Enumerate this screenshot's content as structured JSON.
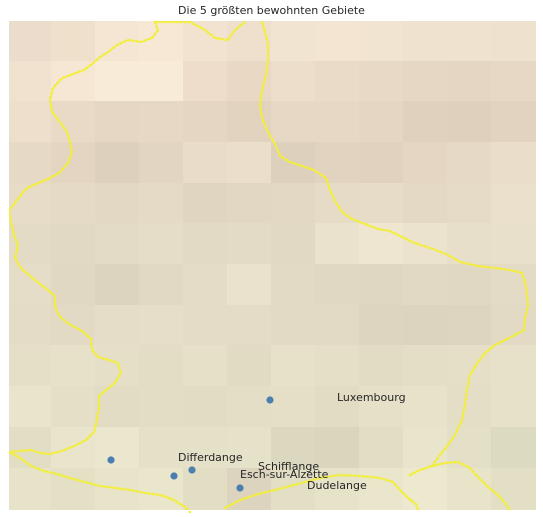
{
  "map": {
    "title": "Die 5 größten bewohnten Gebiete",
    "colors": {
      "border": "#f2ee3a",
      "marker": "#4a7fb0",
      "frame": "#ffffff",
      "text": "#262626"
    },
    "places": [
      {
        "name": "Luxembourg"
      },
      {
        "name": "Esch-sur-Alzette"
      },
      {
        "name": "Differdange"
      },
      {
        "name": "Dudelange"
      },
      {
        "name": "Schifflange"
      }
    ]
  }
}
